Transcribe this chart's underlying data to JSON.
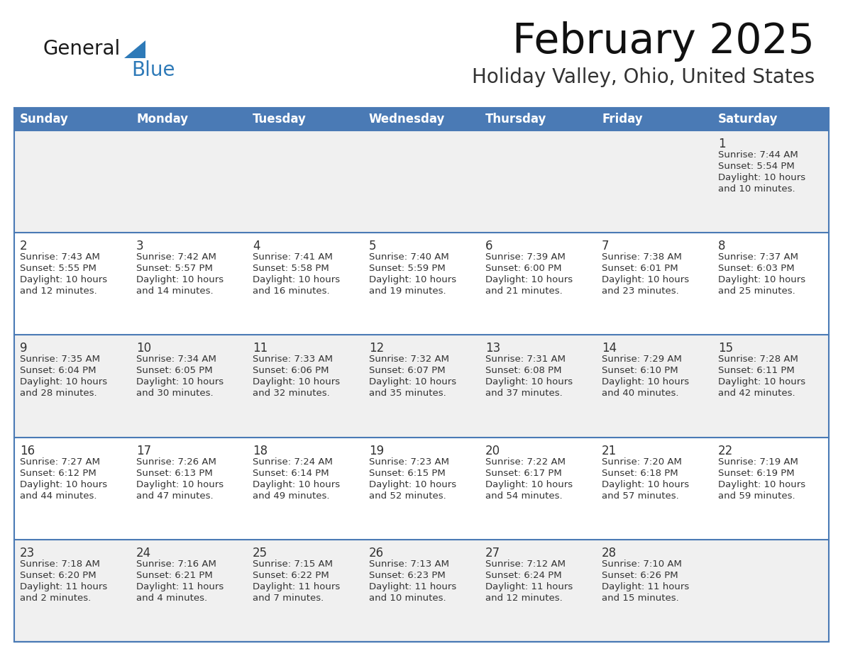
{
  "title": "February 2025",
  "subtitle": "Holiday Valley, Ohio, United States",
  "header_color": "#4a7ab5",
  "header_text_color": "#FFFFFF",
  "background_color": "#FFFFFF",
  "cell_bg_light": "#f0f0f0",
  "cell_bg_white": "#FFFFFF",
  "border_color": "#4a7ab5",
  "number_color": "#333333",
  "text_color": "#333333",
  "logo_black": "#1a1a1a",
  "logo_blue": "#2e7ab8",
  "day_headers": [
    "Sunday",
    "Monday",
    "Tuesday",
    "Wednesday",
    "Thursday",
    "Friday",
    "Saturday"
  ],
  "weeks": [
    [
      {
        "day": 0,
        "text": ""
      },
      {
        "day": 0,
        "text": ""
      },
      {
        "day": 0,
        "text": ""
      },
      {
        "day": 0,
        "text": ""
      },
      {
        "day": 0,
        "text": ""
      },
      {
        "day": 0,
        "text": ""
      },
      {
        "day": 1,
        "text": "Sunrise: 7:44 AM\nSunset: 5:54 PM\nDaylight: 10 hours\nand 10 minutes."
      }
    ],
    [
      {
        "day": 2,
        "text": "Sunrise: 7:43 AM\nSunset: 5:55 PM\nDaylight: 10 hours\nand 12 minutes."
      },
      {
        "day": 3,
        "text": "Sunrise: 7:42 AM\nSunset: 5:57 PM\nDaylight: 10 hours\nand 14 minutes."
      },
      {
        "day": 4,
        "text": "Sunrise: 7:41 AM\nSunset: 5:58 PM\nDaylight: 10 hours\nand 16 minutes."
      },
      {
        "day": 5,
        "text": "Sunrise: 7:40 AM\nSunset: 5:59 PM\nDaylight: 10 hours\nand 19 minutes."
      },
      {
        "day": 6,
        "text": "Sunrise: 7:39 AM\nSunset: 6:00 PM\nDaylight: 10 hours\nand 21 minutes."
      },
      {
        "day": 7,
        "text": "Sunrise: 7:38 AM\nSunset: 6:01 PM\nDaylight: 10 hours\nand 23 minutes."
      },
      {
        "day": 8,
        "text": "Sunrise: 7:37 AM\nSunset: 6:03 PM\nDaylight: 10 hours\nand 25 minutes."
      }
    ],
    [
      {
        "day": 9,
        "text": "Sunrise: 7:35 AM\nSunset: 6:04 PM\nDaylight: 10 hours\nand 28 minutes."
      },
      {
        "day": 10,
        "text": "Sunrise: 7:34 AM\nSunset: 6:05 PM\nDaylight: 10 hours\nand 30 minutes."
      },
      {
        "day": 11,
        "text": "Sunrise: 7:33 AM\nSunset: 6:06 PM\nDaylight: 10 hours\nand 32 minutes."
      },
      {
        "day": 12,
        "text": "Sunrise: 7:32 AM\nSunset: 6:07 PM\nDaylight: 10 hours\nand 35 minutes."
      },
      {
        "day": 13,
        "text": "Sunrise: 7:31 AM\nSunset: 6:08 PM\nDaylight: 10 hours\nand 37 minutes."
      },
      {
        "day": 14,
        "text": "Sunrise: 7:29 AM\nSunset: 6:10 PM\nDaylight: 10 hours\nand 40 minutes."
      },
      {
        "day": 15,
        "text": "Sunrise: 7:28 AM\nSunset: 6:11 PM\nDaylight: 10 hours\nand 42 minutes."
      }
    ],
    [
      {
        "day": 16,
        "text": "Sunrise: 7:27 AM\nSunset: 6:12 PM\nDaylight: 10 hours\nand 44 minutes."
      },
      {
        "day": 17,
        "text": "Sunrise: 7:26 AM\nSunset: 6:13 PM\nDaylight: 10 hours\nand 47 minutes."
      },
      {
        "day": 18,
        "text": "Sunrise: 7:24 AM\nSunset: 6:14 PM\nDaylight: 10 hours\nand 49 minutes."
      },
      {
        "day": 19,
        "text": "Sunrise: 7:23 AM\nSunset: 6:15 PM\nDaylight: 10 hours\nand 52 minutes."
      },
      {
        "day": 20,
        "text": "Sunrise: 7:22 AM\nSunset: 6:17 PM\nDaylight: 10 hours\nand 54 minutes."
      },
      {
        "day": 21,
        "text": "Sunrise: 7:20 AM\nSunset: 6:18 PM\nDaylight: 10 hours\nand 57 minutes."
      },
      {
        "day": 22,
        "text": "Sunrise: 7:19 AM\nSunset: 6:19 PM\nDaylight: 10 hours\nand 59 minutes."
      }
    ],
    [
      {
        "day": 23,
        "text": "Sunrise: 7:18 AM\nSunset: 6:20 PM\nDaylight: 11 hours\nand 2 minutes."
      },
      {
        "day": 24,
        "text": "Sunrise: 7:16 AM\nSunset: 6:21 PM\nDaylight: 11 hours\nand 4 minutes."
      },
      {
        "day": 25,
        "text": "Sunrise: 7:15 AM\nSunset: 6:22 PM\nDaylight: 11 hours\nand 7 minutes."
      },
      {
        "day": 26,
        "text": "Sunrise: 7:13 AM\nSunset: 6:23 PM\nDaylight: 11 hours\nand 10 minutes."
      },
      {
        "day": 27,
        "text": "Sunrise: 7:12 AM\nSunset: 6:24 PM\nDaylight: 11 hours\nand 12 minutes."
      },
      {
        "day": 28,
        "text": "Sunrise: 7:10 AM\nSunset: 6:26 PM\nDaylight: 11 hours\nand 15 minutes."
      },
      {
        "day": 0,
        "text": ""
      }
    ]
  ]
}
